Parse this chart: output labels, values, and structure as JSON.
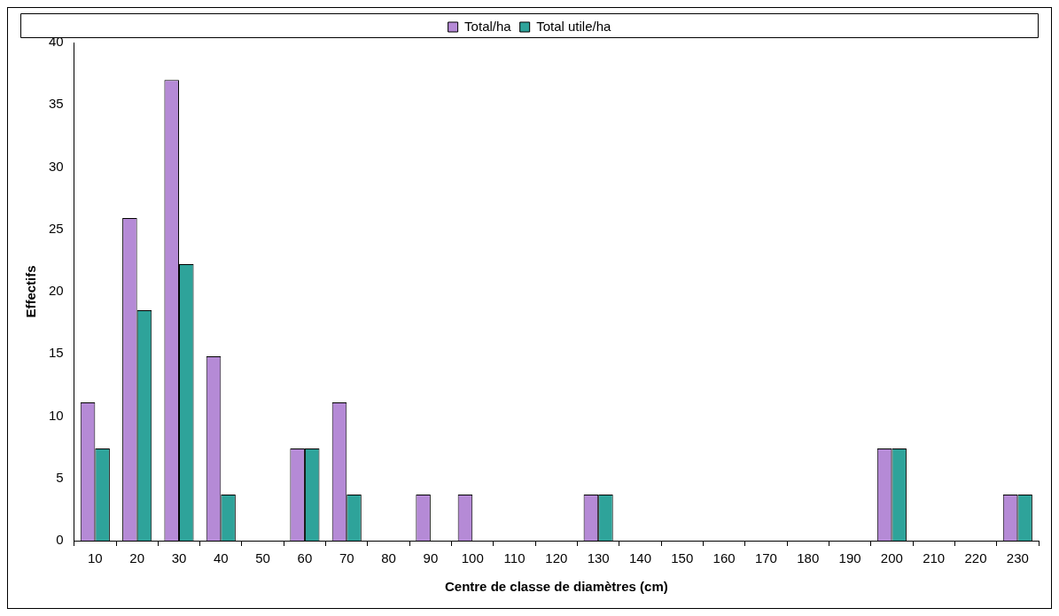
{
  "chart_data": {
    "type": "bar",
    "xlabel": "Centre de classe de diamètres (cm)",
    "ylabel": "Effectifs",
    "categories": [
      "10",
      "20",
      "30",
      "40",
      "50",
      "60",
      "70",
      "80",
      "90",
      "100",
      "110",
      "120",
      "130",
      "140",
      "150",
      "160",
      "170",
      "180",
      "190",
      "200",
      "210",
      "220",
      "230"
    ],
    "series": [
      {
        "name": "Total/ha",
        "color": "#b58ad6",
        "values": [
          11.1,
          25.9,
          37,
          14.8,
          0,
          7.4,
          11.1,
          0,
          3.7,
          3.7,
          0,
          0,
          3.7,
          0,
          0,
          0,
          0,
          0,
          0,
          7.4,
          0,
          0,
          3.7
        ]
      },
      {
        "name": "Total utile/ha",
        "color": "#2ea39a",
        "values": [
          7.4,
          18.5,
          22.2,
          3.7,
          0,
          7.4,
          3.7,
          0,
          0,
          0,
          0,
          0,
          3.7,
          0,
          0,
          0,
          0,
          0,
          0,
          7.4,
          0,
          0,
          3.7
        ]
      }
    ],
    "ylim": [
      0,
      40
    ],
    "yticks": [
      0,
      5,
      10,
      15,
      20,
      25,
      30,
      35,
      40
    ],
    "grid": false,
    "legend": "top"
  }
}
